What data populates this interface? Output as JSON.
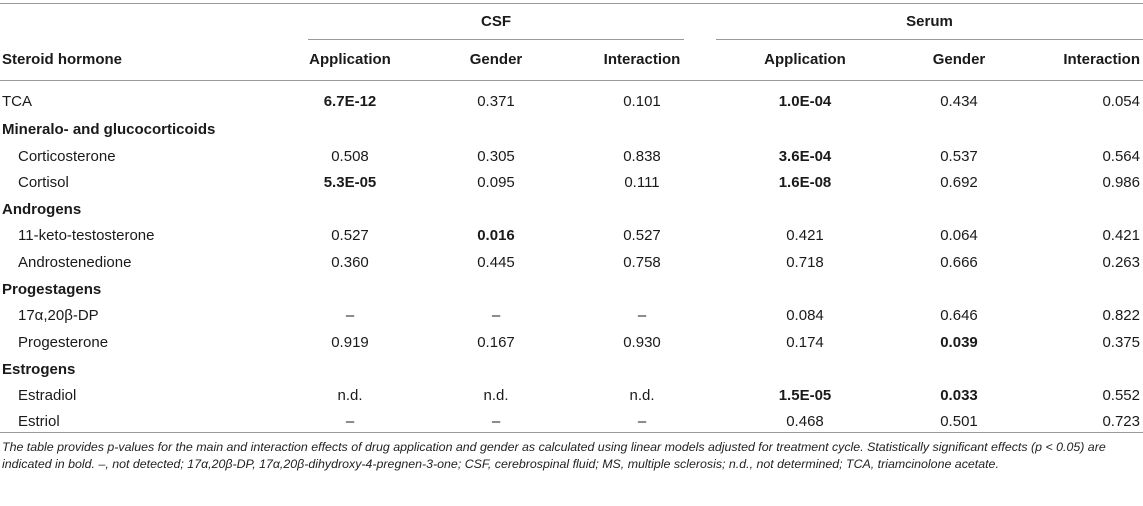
{
  "table": {
    "group_headers": {
      "csf": "CSF",
      "serum": "Serum"
    },
    "columns": {
      "hormone": "Steroid hormone",
      "csf_application": "Application",
      "csf_gender": "Gender",
      "csf_interaction": "Interaction",
      "serum_application": "Application",
      "serum_gender": "Gender",
      "serum_interaction": "Interaction"
    },
    "rows": [
      {
        "kind": "data",
        "label": "TCA",
        "indent": false,
        "values": [
          "6.7E-12",
          "0.371",
          "0.101",
          "1.0E-04",
          "0.434",
          "0.054"
        ],
        "bold": [
          true,
          false,
          false,
          true,
          false,
          false
        ]
      },
      {
        "kind": "section",
        "label": "Mineralo- and glucocorticoids"
      },
      {
        "kind": "data",
        "label": "Corticosterone",
        "indent": true,
        "values": [
          "0.508",
          "0.305",
          "0.838",
          "3.6E-04",
          "0.537",
          "0.564"
        ],
        "bold": [
          false,
          false,
          false,
          true,
          false,
          false
        ]
      },
      {
        "kind": "data",
        "label": "Cortisol",
        "indent": true,
        "values": [
          "5.3E-05",
          "0.095",
          "0.111",
          "1.6E-08",
          "0.692",
          "0.986"
        ],
        "bold": [
          true,
          false,
          false,
          true,
          false,
          false
        ]
      },
      {
        "kind": "section",
        "label": "Androgens"
      },
      {
        "kind": "data",
        "label": "11-keto-testosterone",
        "indent": true,
        "values": [
          "0.527",
          "0.016",
          "0.527",
          "0.421",
          "0.064",
          "0.421"
        ],
        "bold": [
          false,
          true,
          false,
          false,
          false,
          false
        ]
      },
      {
        "kind": "data",
        "label": "Androstenedione",
        "indent": true,
        "values": [
          "0.360",
          "0.445",
          "0.758",
          "0.718",
          "0.666",
          "0.263"
        ],
        "bold": [
          false,
          false,
          false,
          false,
          false,
          false
        ]
      },
      {
        "kind": "section",
        "label": "Progestagens"
      },
      {
        "kind": "data",
        "label": "17α,20β-DP",
        "indent": true,
        "values": [
          "–",
          "–",
          "–",
          "0.084",
          "0.646",
          "0.822"
        ],
        "bold": [
          false,
          false,
          false,
          false,
          false,
          false
        ]
      },
      {
        "kind": "data",
        "label": "Progesterone",
        "indent": true,
        "values": [
          "0.919",
          "0.167",
          "0.930",
          "0.174",
          "0.039",
          "0.375"
        ],
        "bold": [
          false,
          false,
          false,
          false,
          true,
          false
        ]
      },
      {
        "kind": "section",
        "label": "Estrogens"
      },
      {
        "kind": "data",
        "label": "Estradiol",
        "indent": true,
        "values": [
          "n.d.",
          "n.d.",
          "n.d.",
          "1.5E-05",
          "0.033",
          "0.552"
        ],
        "bold": [
          false,
          false,
          false,
          true,
          true,
          false
        ]
      },
      {
        "kind": "data",
        "label": "Estriol",
        "indent": true,
        "values": [
          "–",
          "–",
          "–",
          "0.468",
          "0.501",
          "0.723"
        ],
        "bold": [
          false,
          false,
          false,
          false,
          false,
          false
        ]
      }
    ]
  },
  "caption": "The table provides p-values for the main and interaction effects of drug application and gender as calculated using linear models adjusted for treatment cycle. Statistically significant effects (p < 0.05) are indicated in bold. –, not detected; 17α,20β-DP, 17α,20β-dihydroxy-4-pregnen-3-one; CSF, cerebrospinal fluid; MS, multiple sclerosis; n.d., not determined; TCA, triamcinolone acetate."
}
